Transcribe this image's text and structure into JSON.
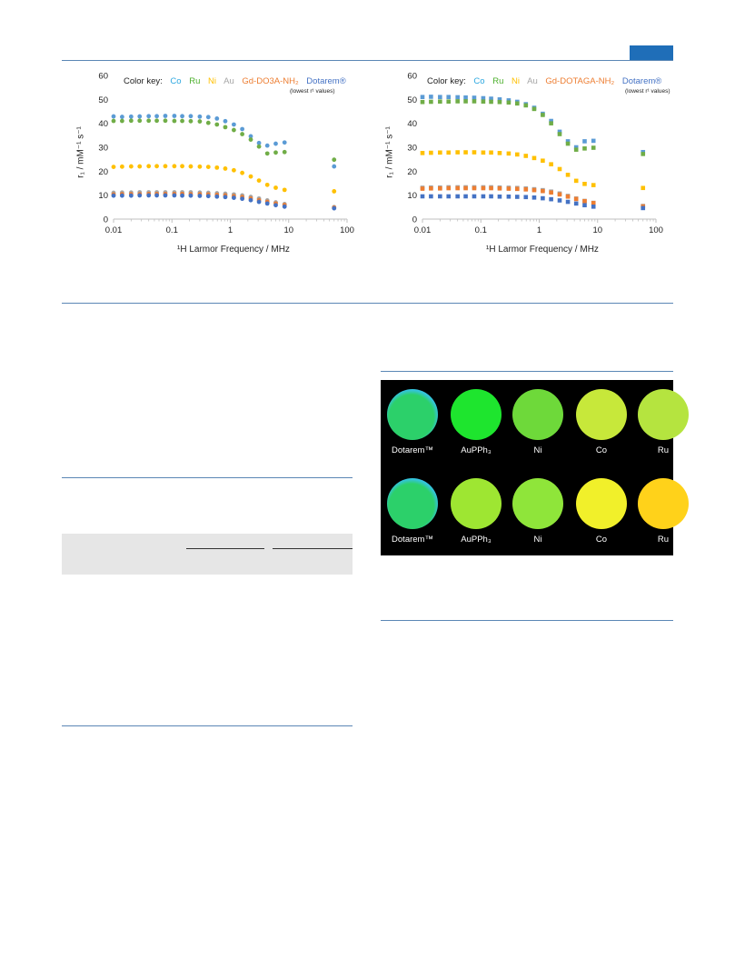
{
  "charts": [
    {
      "chart_data": {
        "type": "scatter",
        "title": "",
        "xlabel": "¹H Larmor Frequency / MHz",
        "ylabel": "r₁ / mM⁻¹ s⁻¹",
        "xscale": "log",
        "xlim": [
          0.01,
          100
        ],
        "ylim": [
          0,
          60
        ],
        "xticks": [
          "0.01",
          "0.1",
          "1",
          "10",
          "100"
        ],
        "yticks": [
          "0",
          "10",
          "20",
          "30",
          "40",
          "50",
          "60"
        ],
        "grid": false,
        "key_title": "Color key:",
        "key_note": "(lowest r¹ values)",
        "marker": "circle",
        "x": [
          0.01,
          0.014,
          0.02,
          0.028,
          0.04,
          0.055,
          0.077,
          0.11,
          0.15,
          0.21,
          0.3,
          0.42,
          0.59,
          0.82,
          1.15,
          1.6,
          2.24,
          3.1,
          4.3,
          6.0,
          8.5,
          60
        ],
        "series": [
          {
            "name": "Co",
            "color": "#5b9bd5",
            "values": [
              42.9,
              42.7,
              42.8,
              42.9,
              43.0,
              43.0,
              43.1,
              43.1,
              43.0,
              43.0,
              42.8,
              42.6,
              42.0,
              40.9,
              39.5,
              37.6,
              34.6,
              31.8,
              30.7,
              31.5,
              32.0,
              22.0
            ]
          },
          {
            "name": "Ru",
            "color": "#70ad47",
            "values": [
              41.0,
              41.0,
              41.1,
              41.1,
              41.1,
              41.1,
              41.1,
              41.0,
              41.0,
              40.9,
              40.8,
              40.2,
              39.5,
              38.4,
              37.2,
              35.5,
              33.2,
              30.3,
              27.4,
              27.8,
              28.0,
              24.8
            ]
          },
          {
            "name": "Ni",
            "color": "#ffc000",
            "values": [
              21.8,
              21.9,
              22.0,
              22.0,
              22.1,
              22.1,
              22.1,
              22.1,
              22.1,
              22.0,
              21.9,
              21.8,
              21.5,
              21.1,
              20.4,
              19.3,
              17.8,
              16.1,
              14.3,
              13.1,
              12.2,
              11.6
            ]
          },
          {
            "name": "Au",
            "color": "#a5a5a5",
            "values": [
              11.0,
              11.1,
              11.1,
              11.2,
              11.2,
              11.2,
              11.2,
              11.2,
              11.2,
              11.2,
              11.1,
              11.0,
              10.8,
              10.6,
              10.3,
              9.9,
              9.3,
              8.6,
              7.8,
              7.0,
              6.3,
              5.0
            ]
          },
          {
            "name": "Gd-DO3A-NH₂",
            "color": "#ed7d31",
            "values": [
              10.3,
              10.4,
              10.4,
              10.4,
              10.5,
              10.5,
              10.5,
              10.5,
              10.5,
              10.4,
              10.4,
              10.3,
              10.1,
              9.9,
              9.6,
              9.2,
              8.6,
              7.9,
              7.2,
              6.5,
              5.9,
              4.8
            ]
          },
          {
            "name": "Dotarem®",
            "color": "#4472c4",
            "values": [
              9.8,
              9.8,
              9.8,
              9.9,
              9.9,
              9.9,
              9.9,
              9.9,
              9.8,
              9.8,
              9.7,
              9.6,
              9.4,
              9.2,
              8.9,
              8.5,
              7.9,
              7.2,
              6.5,
              5.8,
              5.2,
              4.5
            ]
          }
        ]
      }
    },
    {
      "chart_data": {
        "type": "scatter",
        "title": "",
        "xlabel": "¹H Larmor Frequency / MHz",
        "ylabel": "r₁ / mM⁻¹ s⁻¹",
        "xscale": "log",
        "xlim": [
          0.01,
          100
        ],
        "ylim": [
          0,
          60
        ],
        "xticks": [
          "0.01",
          "0.1",
          "1",
          "10",
          "100"
        ],
        "yticks": [
          "0",
          "10",
          "20",
          "30",
          "40",
          "50",
          "60"
        ],
        "grid": false,
        "key_title": "Color key:",
        "key_note": "(lowest r¹ values)",
        "marker": "square",
        "x": [
          0.01,
          0.014,
          0.02,
          0.028,
          0.04,
          0.055,
          0.077,
          0.11,
          0.15,
          0.21,
          0.3,
          0.42,
          0.59,
          0.82,
          1.15,
          1.6,
          2.24,
          3.1,
          4.3,
          6.0,
          8.5,
          60
        ],
        "series": [
          {
            "name": "Co",
            "color": "#5b9bd5",
            "values": [
              51.0,
              51.1,
              51.0,
              51.0,
              50.9,
              50.8,
              50.7,
              50.5,
              50.3,
              50.0,
              49.6,
              49.0,
              48.0,
              46.5,
              44.0,
              41.0,
              36.5,
              32.5,
              30.0,
              32.5,
              32.7,
              28.0
            ]
          },
          {
            "name": "Ru",
            "color": "#70ad47",
            "values": [
              48.9,
              49.0,
              49.1,
              49.1,
              49.2,
              49.2,
              49.2,
              49.1,
              49.0,
              48.9,
              48.7,
              48.3,
              47.5,
              46.0,
              43.5,
              40.0,
              35.5,
              31.5,
              29.0,
              29.5,
              29.8,
              27.2
            ]
          },
          {
            "name": "Ni",
            "color": "#ffc000",
            "values": [
              27.6,
              27.7,
              27.8,
              27.8,
              27.9,
              27.9,
              27.9,
              27.8,
              27.8,
              27.6,
              27.4,
              27.0,
              26.4,
              25.5,
              24.4,
              22.9,
              20.9,
              18.5,
              16.0,
              14.7,
              14.2,
              13.0
            ]
          },
          {
            "name": "Au",
            "color": "#a5a5a5",
            "values": [
              13.1,
              13.2,
              13.2,
              13.3,
              13.3,
              13.3,
              13.3,
              13.3,
              13.3,
              13.2,
              13.1,
              13.0,
              12.8,
              12.5,
              12.1,
              11.5,
              10.7,
              9.7,
              8.6,
              7.6,
              6.8,
              5.5
            ]
          },
          {
            "name": "Gd-DOTAGA-NH₂",
            "color": "#ed7d31",
            "values": [
              12.7,
              12.8,
              12.8,
              12.9,
              12.9,
              12.9,
              12.9,
              12.9,
              12.9,
              12.8,
              12.7,
              12.6,
              12.4,
              12.1,
              11.7,
              11.1,
              10.3,
              9.4,
              8.4,
              7.5,
              6.7,
              5.3
            ]
          },
          {
            "name": "Dotarem®",
            "color": "#4472c4",
            "values": [
              9.5,
              9.5,
              9.5,
              9.5,
              9.5,
              9.5,
              9.5,
              9.5,
              9.5,
              9.4,
              9.4,
              9.3,
              9.2,
              9.0,
              8.7,
              8.3,
              7.8,
              7.2,
              6.5,
              5.8,
              5.2,
              4.6
            ]
          }
        ]
      }
    }
  ],
  "phantoms": {
    "rows": [
      {
        "labels": [
          "Dotarem™",
          "AuPPh₃",
          "Ni",
          "Co",
          "Ru"
        ]
      },
      {
        "labels": [
          "Dotarem™",
          "AuPPh₃",
          "Ni",
          "Co",
          "Ru"
        ]
      }
    ],
    "colors": [
      [
        "#2cd06a",
        "#1ee52e",
        "#6ed93a",
        "#c7e83a",
        "#b5e43f"
      ],
      [
        "#2cd06a",
        "#9ee632",
        "#8fe53a",
        "#f1f02a",
        "#ffd21a"
      ]
    ]
  }
}
